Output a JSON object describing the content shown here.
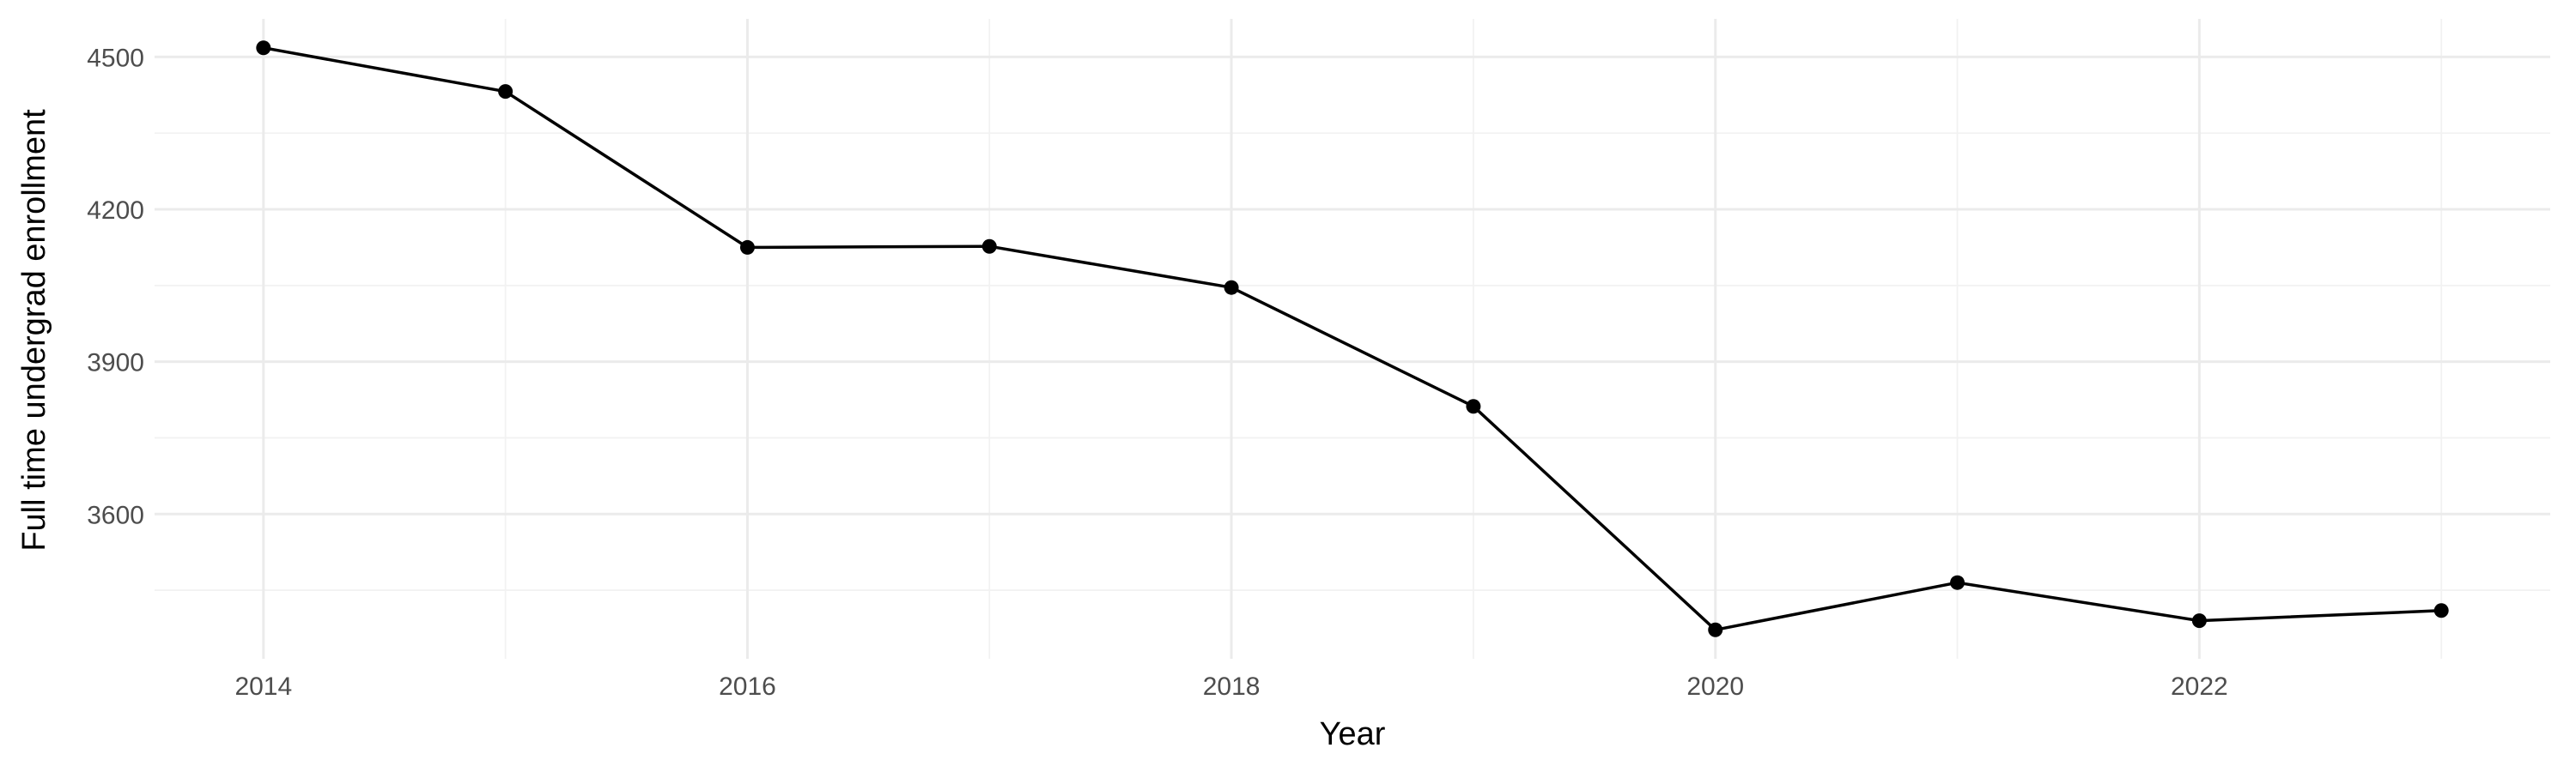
{
  "chart_data": {
    "type": "line",
    "title": "",
    "xlabel": "Year",
    "ylabel": "Full time undergrad enrollment",
    "x": [
      2014,
      2015,
      2016,
      2017,
      2018,
      2019,
      2020,
      2021,
      2022,
      2023
    ],
    "series": [
      {
        "values": [
          4518,
          4432,
          4125,
          4127,
          4046,
          3812,
          3372,
          3465,
          3390,
          3410
        ]
      }
    ],
    "xlim": [
      2013.55,
      2023.45
    ],
    "ylim": [
      3315,
      4575
    ],
    "x_ticks": [
      2014,
      2016,
      2018,
      2020,
      2022
    ],
    "x_tick_labels": [
      "2014",
      "2016",
      "2018",
      "2020",
      "2022"
    ],
    "x_minor_ticks": [
      2015,
      2017,
      2019,
      2021,
      2023
    ],
    "y_ticks": [
      3600,
      3900,
      4200,
      4500
    ],
    "y_tick_labels": [
      "3600",
      "3900",
      "4200",
      "4500"
    ],
    "y_minor_ticks": [
      3450,
      3750,
      4050,
      4350
    ],
    "grid": true,
    "legend": "none",
    "colors": {
      "series": "#000000",
      "grid": "#ebebeb",
      "tick_text": "#4d4d4d",
      "background": "#ffffff"
    }
  }
}
